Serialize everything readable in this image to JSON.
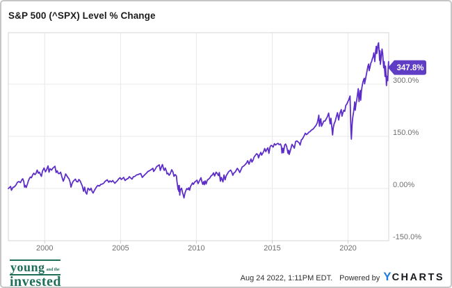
{
  "title": "S&P 500 (^SPX) Level % Change",
  "badge": {
    "label": "347.8%",
    "color": "#5f3dc4"
  },
  "footer": {
    "logo": {
      "word1": "young",
      "word2": "and the",
      "word3": "invested",
      "color": "#1e6e58"
    },
    "timestamp": "Aug 24 2022, 1:11PM EDT.",
    "powered_by": "Powered by",
    "brand_y": "Y",
    "brand_rest": "CHARTS"
  },
  "chart_data": {
    "type": "line",
    "title": "S&P 500 (^SPX) Level % Change",
    "series_name": "S&P 500 (^SPX) Level % Change",
    "line_color": "#5c2dc8",
    "grid_color": "#e8e8e8",
    "border_color": "#d5d5d5",
    "tick_color": "#cfcfcf",
    "label_color": "#6f6f6f",
    "x_domain": [
      1997.6,
      2022.68
    ],
    "y_domain": [
      -150,
      448
    ],
    "x_ticks": [
      {
        "label": "2000",
        "value": 2000
      },
      {
        "label": "2005",
        "value": 2005
      },
      {
        "label": "2010",
        "value": 2010
      },
      {
        "label": "2015",
        "value": 2015
      },
      {
        "label": "2020",
        "value": 2020
      }
    ],
    "y_ticks": [
      {
        "label": "300.0%",
        "value": 300
      },
      {
        "label": "150.0%",
        "value": 150
      },
      {
        "label": "0.00%",
        "value": 0
      },
      {
        "label": "-150.0%",
        "value": -150
      }
    ],
    "last_value": 347.8,
    "last_value_label": "347.8%",
    "points": [
      [
        1997.6,
        0
      ],
      [
        1997.65,
        2
      ],
      [
        1997.7,
        4
      ],
      [
        1997.75,
        6
      ],
      [
        1997.8,
        -5
      ],
      [
        1997.85,
        -1
      ],
      [
        1997.9,
        3
      ],
      [
        1997.95,
        4
      ],
      [
        1998.0,
        5
      ],
      [
        1998.1,
        10
      ],
      [
        1998.2,
        18
      ],
      [
        1998.3,
        20
      ],
      [
        1998.4,
        17
      ],
      [
        1998.5,
        26
      ],
      [
        1998.55,
        28
      ],
      [
        1998.62,
        20
      ],
      [
        1998.67,
        4
      ],
      [
        1998.72,
        9
      ],
      [
        1998.78,
        3
      ],
      [
        1998.85,
        12
      ],
      [
        1998.92,
        22
      ],
      [
        1998.98,
        28
      ],
      [
        1999.05,
        33
      ],
      [
        1999.12,
        31
      ],
      [
        1999.2,
        39
      ],
      [
        1999.28,
        44
      ],
      [
        1999.35,
        40
      ],
      [
        1999.42,
        43
      ],
      [
        1999.5,
        53
      ],
      [
        1999.58,
        44
      ],
      [
        1999.65,
        47
      ],
      [
        1999.72,
        40
      ],
      [
        1999.78,
        35
      ],
      [
        1999.85,
        50
      ],
      [
        1999.95,
        59
      ],
      [
        2000.05,
        48
      ],
      [
        2000.12,
        54
      ],
      [
        2000.22,
        65
      ],
      [
        2000.28,
        47
      ],
      [
        2000.35,
        57
      ],
      [
        2000.45,
        53
      ],
      [
        2000.52,
        58
      ],
      [
        2000.6,
        61
      ],
      [
        2000.67,
        64
      ],
      [
        2000.75,
        46
      ],
      [
        2000.82,
        51
      ],
      [
        2000.9,
        43
      ],
      [
        2000.97,
        43
      ],
      [
        2001.05,
        47
      ],
      [
        2001.12,
        35
      ],
      [
        2001.22,
        21
      ],
      [
        2001.3,
        30
      ],
      [
        2001.38,
        42
      ],
      [
        2001.45,
        37
      ],
      [
        2001.52,
        32
      ],
      [
        2001.6,
        28
      ],
      [
        2001.68,
        17
      ],
      [
        2001.73,
        4
      ],
      [
        2001.8,
        14
      ],
      [
        2001.88,
        21
      ],
      [
        2001.95,
        24
      ],
      [
        2002.02,
        27
      ],
      [
        2002.1,
        20
      ],
      [
        2002.18,
        19
      ],
      [
        2002.25,
        26
      ],
      [
        2002.33,
        22
      ],
      [
        2002.4,
        15
      ],
      [
        2002.48,
        7
      ],
      [
        2002.56,
        -8
      ],
      [
        2002.63,
        4
      ],
      [
        2002.7,
        -11
      ],
      [
        2002.77,
        -16
      ],
      [
        2002.85,
        1
      ],
      [
        2002.92,
        -2
      ],
      [
        2002.98,
        -5
      ],
      [
        2003.05,
        1
      ],
      [
        2003.12,
        -8
      ],
      [
        2003.19,
        -13
      ],
      [
        2003.28,
        -5
      ],
      [
        2003.35,
        0
      ],
      [
        2003.45,
        7
      ],
      [
        2003.52,
        9
      ],
      [
        2003.6,
        7
      ],
      [
        2003.7,
        12
      ],
      [
        2003.8,
        13
      ],
      [
        2003.88,
        15
      ],
      [
        2003.97,
        20
      ],
      [
        2004.05,
        23
      ],
      [
        2004.12,
        25
      ],
      [
        2004.22,
        18
      ],
      [
        2004.3,
        22
      ],
      [
        2004.4,
        19
      ],
      [
        2004.48,
        23
      ],
      [
        2004.55,
        19
      ],
      [
        2004.62,
        15
      ],
      [
        2004.7,
        19
      ],
      [
        2004.78,
        22
      ],
      [
        2004.88,
        28
      ],
      [
        2004.97,
        31
      ],
      [
        2005.05,
        26
      ],
      [
        2005.15,
        30
      ],
      [
        2005.2,
        32
      ],
      [
        2005.3,
        23
      ],
      [
        2005.4,
        27
      ],
      [
        2005.5,
        29
      ],
      [
        2005.58,
        34
      ],
      [
        2005.65,
        31
      ],
      [
        2005.75,
        27
      ],
      [
        2005.85,
        34
      ],
      [
        2005.95,
        35
      ],
      [
        2006.05,
        39
      ],
      [
        2006.15,
        40
      ],
      [
        2006.25,
        42
      ],
      [
        2006.33,
        43
      ],
      [
        2006.43,
        32
      ],
      [
        2006.52,
        36
      ],
      [
        2006.6,
        40
      ],
      [
        2006.7,
        44
      ],
      [
        2006.8,
        49
      ],
      [
        2006.9,
        51
      ],
      [
        2006.97,
        53
      ],
      [
        2007.07,
        56
      ],
      [
        2007.13,
        58
      ],
      [
        2007.18,
        49
      ],
      [
        2007.28,
        55
      ],
      [
        2007.38,
        63
      ],
      [
        2007.48,
        66
      ],
      [
        2007.55,
        68
      ],
      [
        2007.62,
        52
      ],
      [
        2007.7,
        63
      ],
      [
        2007.76,
        69
      ],
      [
        2007.83,
        57
      ],
      [
        2007.88,
        52
      ],
      [
        2007.95,
        59
      ],
      [
        2008.03,
        49
      ],
      [
        2008.06,
        42
      ],
      [
        2008.13,
        44
      ],
      [
        2008.2,
        38
      ],
      [
        2008.28,
        43
      ],
      [
        2008.37,
        54
      ],
      [
        2008.45,
        48
      ],
      [
        2008.52,
        35
      ],
      [
        2008.6,
        40
      ],
      [
        2008.68,
        36
      ],
      [
        2008.72,
        20
      ],
      [
        2008.76,
        8
      ],
      [
        2008.79,
        -3
      ],
      [
        2008.81,
        8
      ],
      [
        2008.84,
        -8
      ],
      [
        2008.87,
        9
      ],
      [
        2008.9,
        -19
      ],
      [
        2008.94,
        -2
      ],
      [
        2008.98,
        -3
      ],
      [
        2009.02,
        1
      ],
      [
        2009.08,
        -11
      ],
      [
        2009.13,
        -18
      ],
      [
        2009.18,
        -27
      ],
      [
        2009.24,
        -14
      ],
      [
        2009.3,
        -6
      ],
      [
        2009.37,
        0
      ],
      [
        2009.44,
        -3
      ],
      [
        2009.5,
        2
      ],
      [
        2009.55,
        -5
      ],
      [
        2009.62,
        7
      ],
      [
        2009.68,
        11
      ],
      [
        2009.74,
        16
      ],
      [
        2009.8,
        12
      ],
      [
        2009.88,
        18
      ],
      [
        2009.96,
        21
      ],
      [
        2010.04,
        24
      ],
      [
        2010.11,
        14
      ],
      [
        2010.2,
        22
      ],
      [
        2010.3,
        31
      ],
      [
        2010.38,
        17
      ],
      [
        2010.42,
        12
      ],
      [
        2010.48,
        20
      ],
      [
        2010.52,
        11
      ],
      [
        2010.58,
        22
      ],
      [
        2010.64,
        13
      ],
      [
        2010.72,
        24
      ],
      [
        2010.8,
        27
      ],
      [
        2010.88,
        30
      ],
      [
        2010.96,
        36
      ],
      [
        2011.05,
        39
      ],
      [
        2011.13,
        45
      ],
      [
        2011.2,
        36
      ],
      [
        2011.3,
        47
      ],
      [
        2011.38,
        43
      ],
      [
        2011.45,
        37
      ],
      [
        2011.51,
        46
      ],
      [
        2011.58,
        21
      ],
      [
        2011.64,
        32
      ],
      [
        2011.7,
        25
      ],
      [
        2011.75,
        19
      ],
      [
        2011.82,
        39
      ],
      [
        2011.89,
        25
      ],
      [
        2011.96,
        36
      ],
      [
        2012.04,
        42
      ],
      [
        2012.12,
        48
      ],
      [
        2012.2,
        51
      ],
      [
        2012.26,
        53
      ],
      [
        2012.33,
        47
      ],
      [
        2012.4,
        38
      ],
      [
        2012.48,
        45
      ],
      [
        2012.55,
        47
      ],
      [
        2012.62,
        52
      ],
      [
        2012.7,
        58
      ],
      [
        2012.78,
        53
      ],
      [
        2012.86,
        46
      ],
      [
        2012.94,
        54
      ],
      [
        2013.02,
        62
      ],
      [
        2013.1,
        64
      ],
      [
        2013.2,
        68
      ],
      [
        2013.3,
        73
      ],
      [
        2013.38,
        80
      ],
      [
        2013.47,
        70
      ],
      [
        2013.55,
        80
      ],
      [
        2013.6,
        85
      ],
      [
        2013.66,
        76
      ],
      [
        2013.74,
        82
      ],
      [
        2013.8,
        90
      ],
      [
        2013.88,
        95
      ],
      [
        2013.97,
        100
      ],
      [
        2014.05,
        97
      ],
      [
        2014.09,
        88
      ],
      [
        2014.18,
        98
      ],
      [
        2014.25,
        104
      ],
      [
        2014.3,
        96
      ],
      [
        2014.38,
        102
      ],
      [
        2014.45,
        108
      ],
      [
        2014.5,
        115
      ],
      [
        2014.58,
        106
      ],
      [
        2014.66,
        114
      ],
      [
        2014.71,
        117
      ],
      [
        2014.78,
        101
      ],
      [
        2014.86,
        120
      ],
      [
        2014.92,
        124
      ],
      [
        2014.98,
        123
      ],
      [
        2015.06,
        119
      ],
      [
        2015.14,
        129
      ],
      [
        2015.22,
        125
      ],
      [
        2015.3,
        128
      ],
      [
        2015.38,
        130
      ],
      [
        2015.46,
        126
      ],
      [
        2015.54,
        128
      ],
      [
        2015.6,
        122
      ],
      [
        2015.64,
        102
      ],
      [
        2015.7,
        116
      ],
      [
        2015.74,
        103
      ],
      [
        2015.82,
        125
      ],
      [
        2015.88,
        128
      ],
      [
        2015.95,
        121
      ],
      [
        2016.04,
        101
      ],
      [
        2016.09,
        110
      ],
      [
        2016.12,
        98
      ],
      [
        2016.2,
        110
      ],
      [
        2016.3,
        127
      ],
      [
        2016.38,
        122
      ],
      [
        2016.46,
        116
      ],
      [
        2016.54,
        135
      ],
      [
        2016.62,
        137
      ],
      [
        2016.7,
        134
      ],
      [
        2016.78,
        131
      ],
      [
        2016.84,
        125
      ],
      [
        2016.92,
        140
      ],
      [
        2016.98,
        142
      ],
      [
        2017.06,
        148
      ],
      [
        2017.14,
        155
      ],
      [
        2017.18,
        159
      ],
      [
        2017.26,
        155
      ],
      [
        2017.34,
        158
      ],
      [
        2017.42,
        162
      ],
      [
        2017.5,
        164
      ],
      [
        2017.58,
        168
      ],
      [
        2017.66,
        170
      ],
      [
        2017.72,
        172
      ],
      [
        2017.8,
        177
      ],
      [
        2017.88,
        181
      ],
      [
        2017.97,
        189
      ],
      [
        2018.04,
        203
      ],
      [
        2018.07,
        211
      ],
      [
        2018.11,
        179
      ],
      [
        2018.17,
        196
      ],
      [
        2018.2,
        201
      ],
      [
        2018.25,
        179
      ],
      [
        2018.32,
        186
      ],
      [
        2018.4,
        194
      ],
      [
        2018.48,
        194
      ],
      [
        2018.56,
        200
      ],
      [
        2018.64,
        207
      ],
      [
        2018.72,
        217
      ],
      [
        2018.78,
        198
      ],
      [
        2018.82,
        186
      ],
      [
        2018.87,
        202
      ],
      [
        2018.92,
        180
      ],
      [
        2018.98,
        154
      ],
      [
        2019.02,
        174
      ],
      [
        2019.08,
        186
      ],
      [
        2019.15,
        193
      ],
      [
        2019.22,
        205
      ],
      [
        2019.3,
        218
      ],
      [
        2019.38,
        197
      ],
      [
        2019.45,
        215
      ],
      [
        2019.55,
        227
      ],
      [
        2019.6,
        208
      ],
      [
        2019.66,
        218
      ],
      [
        2019.72,
        225
      ],
      [
        2019.78,
        222
      ],
      [
        2019.85,
        239
      ],
      [
        2019.92,
        243
      ],
      [
        2019.98,
        249
      ],
      [
        2020.05,
        255
      ],
      [
        2020.1,
        262
      ],
      [
        2020.13,
        266
      ],
      [
        2020.16,
        216
      ],
      [
        2020.19,
        166
      ],
      [
        2020.22,
        142
      ],
      [
        2020.26,
        180
      ],
      [
        2020.3,
        202
      ],
      [
        2020.36,
        219
      ],
      [
        2020.42,
        240
      ],
      [
        2020.44,
        249
      ],
      [
        2020.47,
        225
      ],
      [
        2020.52,
        242
      ],
      [
        2020.57,
        254
      ],
      [
        2020.62,
        270
      ],
      [
        2020.67,
        287
      ],
      [
        2020.72,
        250
      ],
      [
        2020.77,
        270
      ],
      [
        2020.8,
        282
      ],
      [
        2020.83,
        254
      ],
      [
        2020.88,
        280
      ],
      [
        2020.92,
        292
      ],
      [
        2020.98,
        306
      ],
      [
        2021.03,
        313
      ],
      [
        2021.07,
        317
      ],
      [
        2021.09,
        301
      ],
      [
        2021.14,
        312
      ],
      [
        2021.2,
        326
      ],
      [
        2021.26,
        340
      ],
      [
        2021.31,
        352
      ],
      [
        2021.36,
        358
      ],
      [
        2021.39,
        339
      ],
      [
        2021.45,
        350
      ],
      [
        2021.5,
        361
      ],
      [
        2021.55,
        365
      ],
      [
        2021.6,
        373
      ],
      [
        2021.65,
        378
      ],
      [
        2021.7,
        390
      ],
      [
        2021.74,
        374
      ],
      [
        2021.76,
        365
      ],
      [
        2021.82,
        395
      ],
      [
        2021.86,
        409
      ],
      [
        2021.89,
        388
      ],
      [
        2021.93,
        400
      ],
      [
        2021.98,
        415
      ],
      [
        2022.01,
        419
      ],
      [
        2022.05,
        392
      ],
      [
        2022.08,
        368
      ],
      [
        2022.1,
        396
      ],
      [
        2022.13,
        357
      ],
      [
        2022.17,
        372
      ],
      [
        2022.2,
        385
      ],
      [
        2022.24,
        401
      ],
      [
        2022.28,
        388
      ],
      [
        2022.32,
        364
      ],
      [
        2022.35,
        347
      ],
      [
        2022.38,
        365
      ],
      [
        2022.41,
        342
      ],
      [
        2022.44,
        322
      ],
      [
        2022.47,
        352
      ],
      [
        2022.5,
        330
      ],
      [
        2022.53,
        296
      ],
      [
        2022.56,
        316
      ],
      [
        2022.58,
        323
      ],
      [
        2022.61,
        310
      ],
      [
        2022.63,
        330
      ],
      [
        2022.65,
        348
      ],
      [
        2022.67,
        365
      ],
      [
        2022.68,
        347.8
      ]
    ]
  }
}
